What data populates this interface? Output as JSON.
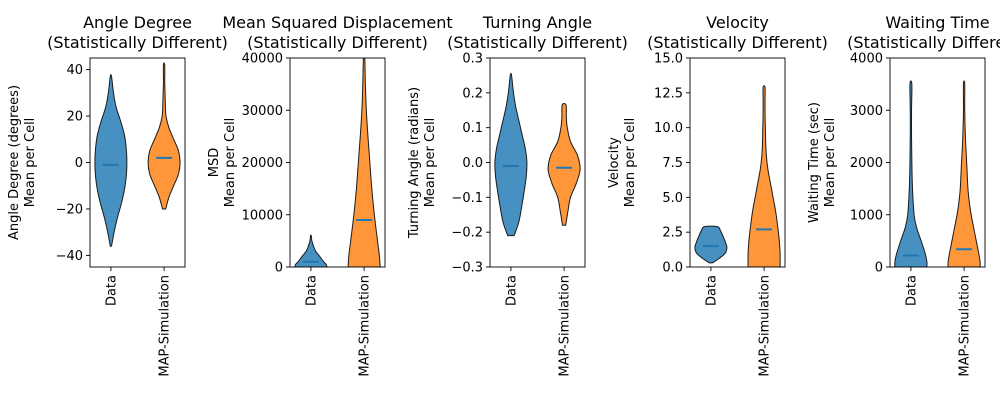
{
  "figure": {
    "categories": [
      "Data",
      "MAP-Simulation"
    ],
    "colors": [
      "#1f77b4",
      "#ff7f0e"
    ]
  },
  "chart_data": [
    {
      "type": "violin",
      "title": [
        "Angle Degree",
        "(Statistically Different)"
      ],
      "ylabel": [
        "Angle Degree (degrees)",
        "Mean per Cell"
      ],
      "categories": [
        "Data",
        "MAP-Simulation"
      ],
      "ylim": [
        -45,
        45
      ],
      "yticks": [
        -40,
        -20,
        0,
        20,
        40
      ],
      "ytick_labels": [
        "−40",
        "−20",
        "0",
        "20",
        "40"
      ],
      "series": [
        {
          "y": [
            -36,
            -30,
            -24,
            -18,
            -12,
            -6,
            0,
            6,
            12,
            18,
            24,
            30,
            37
          ],
          "density": [
            0.02,
            0.1,
            0.2,
            0.32,
            0.42,
            0.48,
            0.5,
            0.48,
            0.42,
            0.3,
            0.16,
            0.08,
            0.02
          ],
          "median": -1
        },
        {
          "y": [
            -20,
            -15,
            -10,
            -5,
            0,
            5,
            10,
            15,
            20,
            25,
            30,
            35,
            42
          ],
          "density": [
            0.05,
            0.15,
            0.3,
            0.45,
            0.5,
            0.45,
            0.3,
            0.15,
            0.06,
            0.04,
            0.03,
            0.02,
            0.02
          ],
          "median": 2
        }
      ]
    },
    {
      "type": "violin",
      "title": [
        "Mean Squared Displacement",
        "(Statistically Different)"
      ],
      "ylabel": [
        "MSD",
        "Mean per Cell"
      ],
      "categories": [
        "Data",
        "MAP-Simulation"
      ],
      "ylim": [
        0,
        40000
      ],
      "yticks": [
        0,
        10000,
        20000,
        30000,
        40000
      ],
      "ytick_labels": [
        "0",
        "10000",
        "20000",
        "30000",
        "40000"
      ],
      "series": [
        {
          "y": [
            0,
            500,
            1000,
            2000,
            3000,
            4000,
            5000,
            6000
          ],
          "density": [
            0.5,
            0.48,
            0.4,
            0.28,
            0.15,
            0.08,
            0.03,
            0.01
          ],
          "median": 1000
        },
        {
          "y": [
            0,
            2000,
            5000,
            10000,
            15000,
            20000,
            25000,
            30000,
            35000,
            40000
          ],
          "density": [
            0.5,
            0.48,
            0.42,
            0.32,
            0.24,
            0.18,
            0.12,
            0.07,
            0.04,
            0.02
          ],
          "median": 9000
        }
      ]
    },
    {
      "type": "violin",
      "title": [
        "Turning Angle",
        "(Statistically Different)"
      ],
      "ylabel": [
        "Turning Angle (radians)",
        "Mean per Cell"
      ],
      "categories": [
        "Data",
        "MAP-Simulation"
      ],
      "ylim": [
        -0.3,
        0.3
      ],
      "yticks": [
        -0.3,
        -0.2,
        -0.1,
        0.0,
        0.1,
        0.2,
        0.3
      ],
      "ytick_labels": [
        "−0.3",
        "−0.2",
        "−0.1",
        "0.0",
        "0.1",
        "0.2",
        "0.3"
      ],
      "series": [
        {
          "y": [
            -0.21,
            -0.17,
            -0.12,
            -0.08,
            -0.04,
            0.0,
            0.04,
            0.08,
            0.12,
            0.16,
            0.2,
            0.25
          ],
          "density": [
            0.1,
            0.25,
            0.35,
            0.42,
            0.48,
            0.5,
            0.45,
            0.35,
            0.25,
            0.15,
            0.08,
            0.02
          ],
          "median": -0.01
        },
        {
          "y": [
            -0.18,
            -0.14,
            -0.1,
            -0.06,
            -0.02,
            0.02,
            0.06,
            0.1,
            0.13,
            0.165
          ],
          "density": [
            0.05,
            0.12,
            0.2,
            0.38,
            0.5,
            0.42,
            0.2,
            0.1,
            0.07,
            0.06
          ],
          "median": -0.015
        }
      ]
    },
    {
      "type": "violin",
      "title": [
        "Velocity",
        "(Statistically Different)"
      ],
      "ylabel": [
        "Velocity",
        "Mean per Cell"
      ],
      "categories": [
        "Data",
        "MAP-Simulation"
      ],
      "ylim": [
        0,
        15
      ],
      "yticks": [
        0,
        2.5,
        5,
        7.5,
        10,
        12.5,
        15
      ],
      "ytick_labels": [
        "0.0",
        "2.5",
        "5.0",
        "7.5",
        "10.0",
        "12.5",
        "15.0"
      ],
      "series": [
        {
          "y": [
            0.3,
            0.6,
            1.0,
            1.4,
            1.8,
            2.2,
            2.6,
            2.9
          ],
          "density": [
            0.05,
            0.25,
            0.45,
            0.5,
            0.45,
            0.38,
            0.3,
            0.2
          ],
          "median": 1.5
        },
        {
          "y": [
            0,
            1,
            2,
            3,
            4,
            5,
            6,
            7,
            8,
            9,
            10,
            11,
            12,
            12.9
          ],
          "density": [
            0.5,
            0.5,
            0.47,
            0.42,
            0.36,
            0.28,
            0.2,
            0.12,
            0.07,
            0.05,
            0.04,
            0.03,
            0.03,
            0.03
          ],
          "median": 2.7
        }
      ]
    },
    {
      "type": "violin",
      "title": [
        "Waiting Time",
        "(Statistically Different)"
      ],
      "ylabel": [
        "Waiting Time (sec)",
        "Mean per Cell"
      ],
      "categories": [
        "Data",
        "MAP-Simulation"
      ],
      "ylim": [
        0,
        4000
      ],
      "yticks": [
        0,
        1000,
        2000,
        3000,
        4000
      ],
      "ytick_labels": [
        "0",
        "1000",
        "2000",
        "3000",
        "4000"
      ],
      "series": [
        {
          "y": [
            0,
            100,
            250,
            500,
            750,
            1000,
            1500,
            2000,
            2500,
            3000,
            3500
          ],
          "density": [
            0.5,
            0.5,
            0.45,
            0.32,
            0.18,
            0.1,
            0.05,
            0.03,
            0.02,
            0.02,
            0.03
          ],
          "median": 220
        },
        {
          "y": [
            0,
            100,
            250,
            500,
            750,
            1000,
            1250,
            1500,
            1750,
            2000,
            2500,
            3000,
            3500
          ],
          "density": [
            0.5,
            0.5,
            0.46,
            0.38,
            0.3,
            0.22,
            0.16,
            0.12,
            0.1,
            0.08,
            0.04,
            0.02,
            0.02
          ],
          "median": 340
        }
      ]
    }
  ]
}
